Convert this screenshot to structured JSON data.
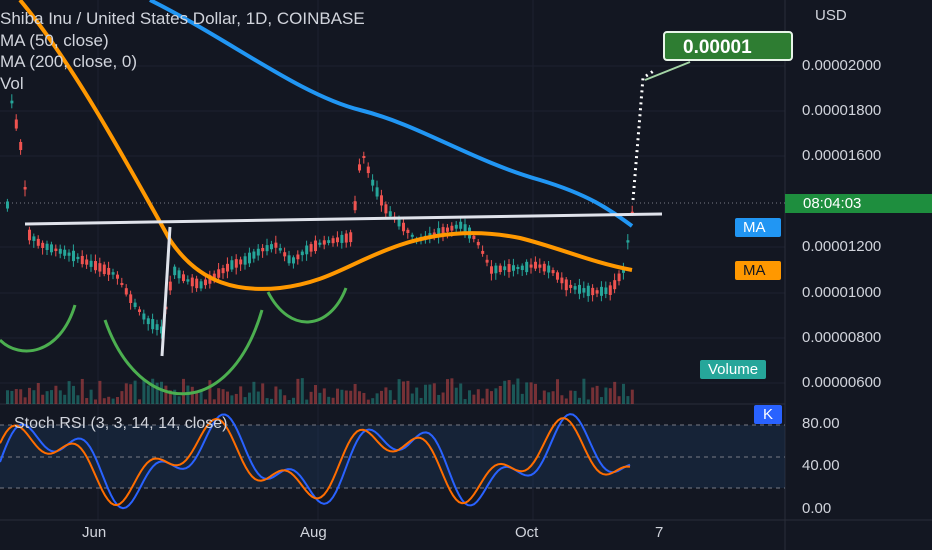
{
  "header": {
    "title": "Shiba Inu / United States Dollar, 1D, COINBASE",
    "ma50_label": "MA (50, close)",
    "ma200_label": "MA (200, close, 0)",
    "vol_label": "Vol"
  },
  "price_axis": {
    "currency": "USD",
    "labels": [
      "0.00002000",
      "0.00001800",
      "0.00001600",
      "0.00001200",
      "0.00001000",
      "0.00000800",
      "0.00000600"
    ],
    "partial_label": "00"
  },
  "stoch_axis": {
    "labels": [
      "80.00",
      "40.00",
      "0.00"
    ]
  },
  "time_axis": {
    "labels": [
      "Jun",
      "Aug",
      "Oct",
      "7"
    ]
  },
  "tags": {
    "ma_blue": "MA",
    "ma_orange": "MA",
    "volume": "Volume",
    "k": "K",
    "countdown": "08:04:03",
    "target_callout": "0.00001"
  },
  "stoch_label": "Stoch RSI (3, 3, 14, 14, close)",
  "colors": {
    "background": "#131722",
    "candle_up": "#26a69a",
    "candle_down": "#ef5350",
    "ma50": "#ff9800",
    "ma200": "#2196f3",
    "stoch_k": "#2962ff",
    "stoch_d": "#ff6d00",
    "drawing_green": "#4caf50",
    "drawing_white": "#e0e3eb",
    "callout": "#2e7d32"
  },
  "icons": [
    "dotted-projection-line",
    "neckline-drawing",
    "cup-arc-drawing"
  ]
}
